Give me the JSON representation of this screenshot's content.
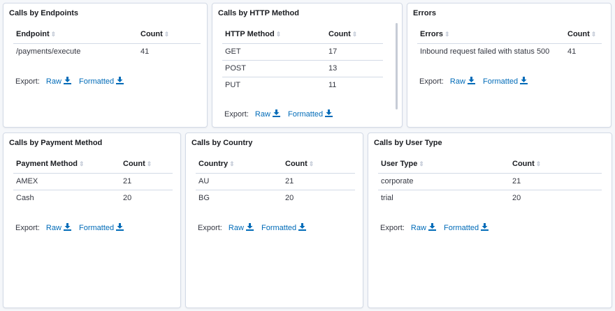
{
  "export_label": "Export:",
  "raw_label": "Raw",
  "formatted_label": "Formatted",
  "panels": {
    "endpoints": {
      "title": "Calls by Endpoints",
      "col1": "Endpoint",
      "col2": "Count",
      "rows": [
        {
          "k": "/payments/execute",
          "v": "41"
        }
      ]
    },
    "http": {
      "title": "Calls by HTTP Method",
      "col1": "HTTP Method",
      "col2": "Count",
      "rows": [
        {
          "k": "GET",
          "v": "17"
        },
        {
          "k": "POST",
          "v": "13"
        },
        {
          "k": "PUT",
          "v": "11"
        }
      ]
    },
    "errors": {
      "title": "Errors",
      "col1": "Errors",
      "col2": "Count",
      "rows": [
        {
          "k": "Inbound request failed with status 500",
          "v": "41"
        }
      ]
    },
    "payment": {
      "title": "Calls by Payment Method",
      "col1": "Payment Method",
      "col2": "Count",
      "rows": [
        {
          "k": "AMEX",
          "v": "21"
        },
        {
          "k": "Cash",
          "v": "20"
        }
      ]
    },
    "country": {
      "title": "Calls by Country",
      "col1": "Country",
      "col2": "Count",
      "rows": [
        {
          "k": "AU",
          "v": "21"
        },
        {
          "k": "BG",
          "v": "20"
        }
      ]
    },
    "usertype": {
      "title": "Calls by User Type",
      "col1": "User Type",
      "col2": "Count",
      "rows": [
        {
          "k": "corporate",
          "v": "21"
        },
        {
          "k": "trial",
          "v": "20"
        }
      ]
    }
  },
  "icons": {
    "sort": "sort-icon",
    "download": "download-icon"
  },
  "colors": {
    "link": "#006bb8",
    "border": "#d3dae6",
    "background": "#f5f7fa"
  }
}
